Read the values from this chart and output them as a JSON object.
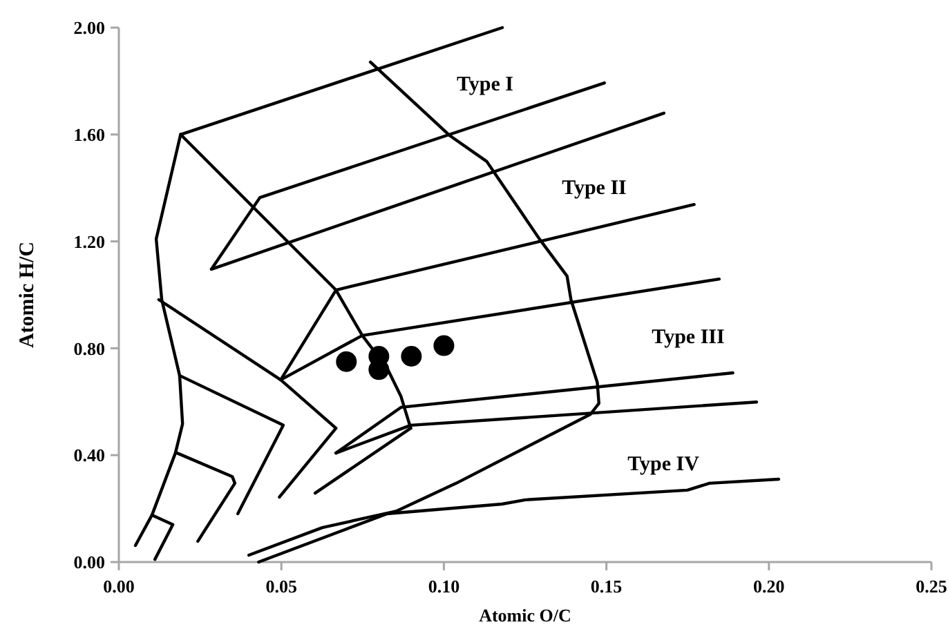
{
  "chart_data": {
    "type": "line",
    "xlabel": "Atomic O/C",
    "ylabel": "Atomic H/C",
    "xlim": [
      0,
      0.25
    ],
    "ylim": [
      0,
      2.0
    ],
    "xticks": [
      {
        "value": 0,
        "label": "0.00"
      },
      {
        "value": 0.05,
        "label": "0.05"
      },
      {
        "value": 0.1,
        "label": "0.10"
      },
      {
        "value": 0.15,
        "label": "0.15"
      },
      {
        "value": 0.2,
        "label": "0.20"
      },
      {
        "value": 0.25,
        "label": "0.25"
      }
    ],
    "yticks": [
      {
        "value": 0,
        "label": "0.00"
      },
      {
        "value": 0.4,
        "label": "0.40"
      },
      {
        "value": 0.8,
        "label": "0.80"
      },
      {
        "value": 1.2,
        "label": "1.20"
      },
      {
        "value": 1.6,
        "label": "1.60"
      },
      {
        "value": 2.0,
        "label": "2.00"
      }
    ],
    "grid": false,
    "line_style": "solid",
    "annotations": [
      "Type I",
      "Type II",
      "Type III",
      "Type IV"
    ],
    "series": [
      {
        "type": "line",
        "color": "#000000",
        "marker": "none",
        "x": [
          0.019,
          0.118
        ],
        "values": [
          1.6,
          2.0
        ]
      },
      {
        "type": "line",
        "color": "#000000",
        "marker": "none",
        "x": [
          0.019,
          0.0115,
          0.0132,
          0.0187,
          0.0196,
          0.0174,
          0.0102,
          0.0051
        ],
        "values": [
          1.6,
          1.209,
          0.982,
          0.698,
          0.517,
          0.408,
          0.176,
          0.062
        ]
      },
      {
        "type": "line",
        "color": "#000000",
        "marker": "none",
        "x": [
          0.019,
          0.0668,
          0.0749,
          0.0826,
          0.0868,
          0.0881,
          0.0898
        ],
        "values": [
          1.6,
          1.018,
          0.848,
          0.724,
          0.62,
          0.568,
          0.501
        ]
      },
      {
        "type": "line",
        "color": "#000000",
        "marker": "none",
        "x": [
          0.0285,
          0.0434,
          0.1494
        ],
        "values": [
          1.096,
          1.364,
          1.793
        ]
      },
      {
        "type": "line",
        "color": "#000000",
        "marker": "none",
        "x": [
          0.0285,
          0.1677
        ],
        "values": [
          1.096,
          1.68
        ]
      },
      {
        "type": "line",
        "color": "#000000",
        "marker": "none",
        "x": [
          0.0498,
          0.0668,
          0.177
        ],
        "values": [
          0.682,
          1.018,
          1.338
        ]
      },
      {
        "type": "line",
        "color": "#000000",
        "marker": "none",
        "x": [
          0.0498,
          0.0749,
          0.1847
        ],
        "values": [
          0.682,
          0.848,
          1.059
        ]
      },
      {
        "type": "line",
        "color": "#000000",
        "marker": "none",
        "x": [
          0.0668,
          0.0868,
          0.1889
        ],
        "values": [
          0.408,
          0.579,
          0.708
        ]
      },
      {
        "type": "line",
        "color": "#000000",
        "marker": "none",
        "x": [
          0.0668,
          0.0898,
          0.1962
        ],
        "values": [
          0.408,
          0.512,
          0.599
        ]
      },
      {
        "type": "line",
        "color": "#000000",
        "marker": "none",
        "x": [
          0.0604,
          0.0898
        ],
        "values": [
          0.258,
          0.501
        ]
      },
      {
        "type": "line",
        "color": "#000000",
        "marker": "none",
        "x": [
          0.0774,
          0.1017,
          0.1132,
          0.1294,
          0.1379,
          0.1391,
          0.1472,
          0.1477,
          0.1451,
          0.1038,
          0.0855,
          0.0626,
          0.04
        ],
        "values": [
          1.871,
          1.597,
          1.499,
          1.209,
          1.07,
          0.982,
          0.672,
          0.594,
          0.553,
          0.295,
          0.191,
          0.129,
          0.026
        ]
      },
      {
        "type": "line",
        "color": "#000000",
        "marker": "none",
        "x": [
          0.043,
          0.0826,
          0.1179,
          0.1251,
          0.1749,
          0.1817,
          0.203
        ],
        "values": [
          0.0,
          0.181,
          0.217,
          0.233,
          0.269,
          0.295,
          0.31
        ]
      },
      {
        "type": "line",
        "color": "#000000",
        "marker": "none",
        "x": [
          0.0123,
          0.0498,
          0.0668,
          0.0494
        ],
        "values": [
          0.982,
          0.682,
          0.501,
          0.243
        ]
      },
      {
        "type": "line",
        "color": "#000000",
        "marker": "none",
        "x": [
          0.0187,
          0.0506,
          0.0366
        ],
        "values": [
          0.698,
          0.512,
          0.181
        ]
      },
      {
        "type": "line",
        "color": "#000000",
        "marker": "none",
        "x": [
          0.0179,
          0.0349,
          0.0357,
          0.0243
        ],
        "values": [
          0.408,
          0.32,
          0.295,
          0.078
        ]
      },
      {
        "type": "line",
        "color": "#000000",
        "marker": "none",
        "x": [
          0.0102,
          0.0166,
          0.0111
        ],
        "values": [
          0.176,
          0.14,
          0.01
        ]
      },
      {
        "type": "scatter",
        "color": "#000000",
        "marker": "circle",
        "x": [
          0.07,
          0.08,
          0.08,
          0.09,
          0.1
        ],
        "values": [
          0.75,
          0.77,
          0.72,
          0.77,
          0.81
        ]
      }
    ]
  }
}
